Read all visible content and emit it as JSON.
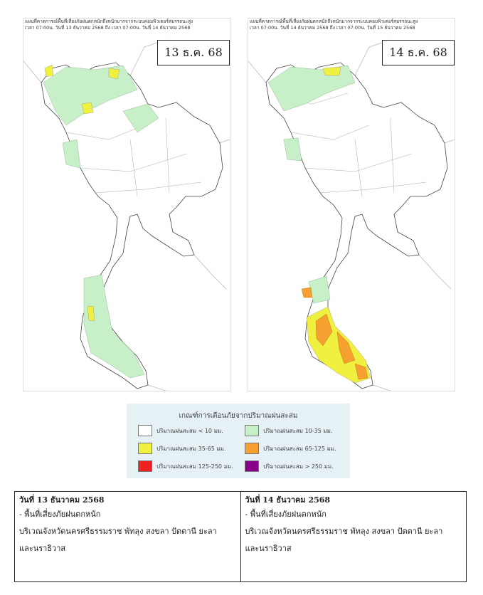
{
  "maps": [
    {
      "header": [
        "แผนที่คาดการณ์พื้นที่เสี่ยงภัยฝนตกหนักถึงหนักมากจากระบบคอมพิวเตอร์สมรรถนะสูง",
        "เวลา 07:00น. วันที่ 13 ธันวาคม 2568 ถึง เวลา 07:00น. วันที่ 14 ธันวาคม 2568"
      ],
      "date": "13 ธ.ค. 68"
    },
    {
      "header": [
        "แผนที่คาดการณ์พื้นที่เสี่ยงภัยฝนตกหนักถึงหนักมากจากระบบคอมพิวเตอร์สมรรถนะสูง",
        "เวลา 07:00น. วันที่ 14 ธันวาคม 2568 ถึง เวลา 07:00น. วันที่ 15 ธันวาคม 2568"
      ],
      "date": "14 ธ.ค. 68"
    }
  ],
  "legend": {
    "title": "เกณฑ์การเตือนภัยจากปริมาณฝนสะสม",
    "items": [
      "ปริมาณฝนสะสม < 10 มม.",
      "ปริมาณฝนสะสม 10-35 มม.",
      "ปริมาณฝนสะสม 35-65 มม.",
      "ปริมาณฝนสะสม 65-125 มม.",
      "ปริมาณฝนสะสม 125-250 มม.",
      "ปริมาณฝนสะสม > 250 มม."
    ]
  },
  "table": {
    "cells": [
      {
        "date": "วันที่ 13 ธันวาคม 2568",
        "lines": [
          "- พื้นที่เสี่ยงภัยฝนตกหนัก",
          "บริเวณจังหวัดนครศรีธรรมราช พัทลุง สงขลา ปัตตานี ยะลา",
          "และนราธิวาส"
        ]
      },
      {
        "date": "วันที่ 14 ธันวาคม 2568",
        "lines": [
          "- พื้นที่เสี่ยงภัยฝนตกหนัก",
          "บริเวณจังหวัดนครศรีธรรมราช พัทลุง สงขลา ปัตตานี ยะลา",
          "และนราธิวาส"
        ]
      }
    ]
  }
}
